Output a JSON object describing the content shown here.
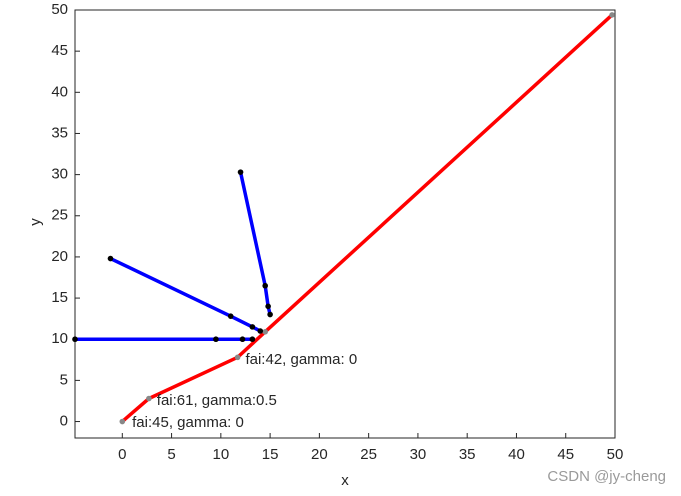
{
  "chart_data": {
    "type": "line",
    "xlabel": "x",
    "ylabel": "y",
    "xlim": [
      -4.8,
      50
    ],
    "ylim": [
      -2,
      50
    ],
    "xticks": [
      0,
      5,
      10,
      15,
      20,
      25,
      30,
      35,
      40,
      45,
      50
    ],
    "yticks": [
      0,
      5,
      10,
      15,
      20,
      25,
      30,
      35,
      40,
      45,
      50
    ],
    "grid": false,
    "series": [
      {
        "color": "#ff0000",
        "marker_color": "#888888",
        "x": [
          0,
          2.7,
          11.7,
          14.5,
          49.7
        ],
        "y": [
          0,
          2.8,
          7.8,
          10.9,
          49.4
        ]
      },
      {
        "color": "#0000ff",
        "marker_color": "#000000",
        "x": [
          12,
          14.5,
          14.8,
          15
        ],
        "y": [
          30.3,
          16.5,
          14,
          13
        ]
      },
      {
        "color": "#0000ff",
        "marker_color": "#000000",
        "x": [
          -1.2,
          11,
          13.2,
          14
        ],
        "y": [
          19.8,
          12.8,
          11.5,
          11
        ]
      },
      {
        "color": "#0000ff",
        "marker_color": "#000000",
        "x": [
          -4.8,
          9.5,
          12.2,
          13.2
        ],
        "y": [
          10,
          10,
          10,
          10
        ]
      }
    ],
    "annotations": [
      {
        "text": "fai:42,  gamma:  0",
        "x": 12.5,
        "y": 7.5
      },
      {
        "text": "fai:61,  gamma:0.5",
        "x": 3.5,
        "y": 2.5
      },
      {
        "text": "fai:45,  gamma:  0",
        "x": 1,
        "y": -0.2
      }
    ],
    "watermark": "CSDN @jy-cheng"
  }
}
